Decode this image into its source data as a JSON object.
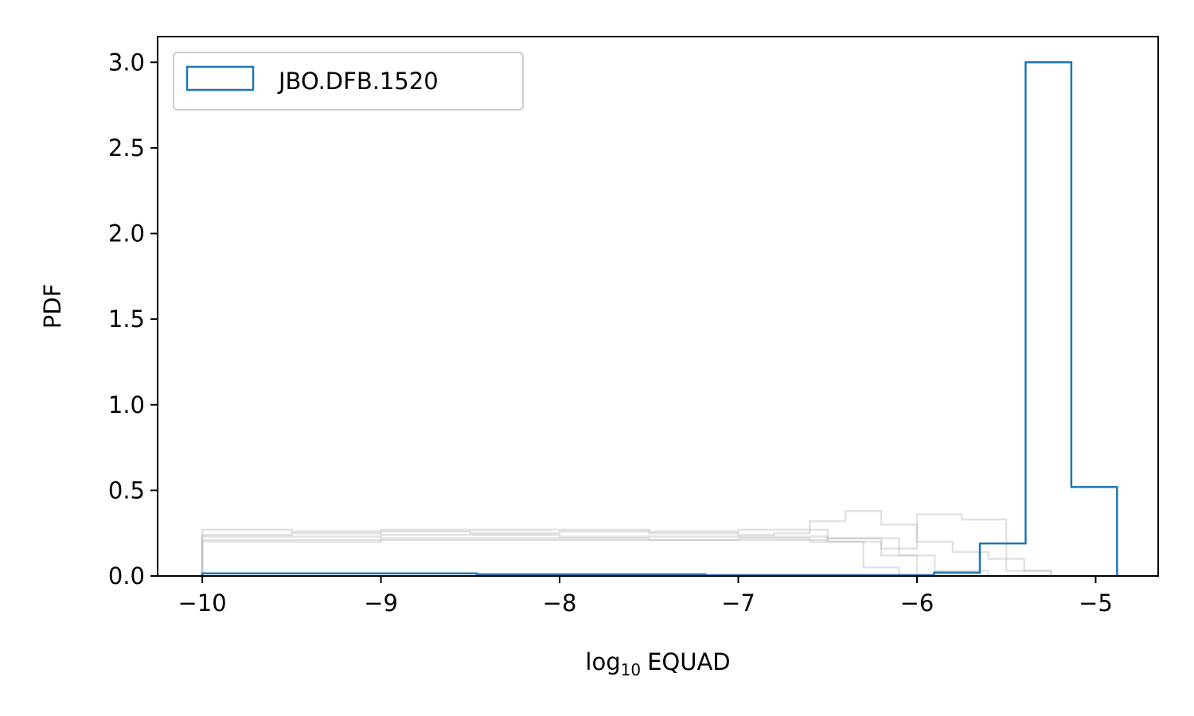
{
  "chart_data": {
    "type": "histogram-step",
    "title": "",
    "xlabel_base": "log",
    "xlabel_sub": "10",
    "xlabel_rest": "EQUAD",
    "ylabel": "PDF",
    "xlim": [
      -10.25,
      -4.65
    ],
    "ylim": [
      0,
      3.15
    ],
    "xticks": [
      -10,
      -9,
      -8,
      -7,
      -6,
      -5
    ],
    "xtick_labels": [
      "−10",
      "−9",
      "−8",
      "−7",
      "−6",
      "−5"
    ],
    "yticks": [
      0.0,
      0.5,
      1.0,
      1.5,
      2.0,
      2.5,
      3.0
    ],
    "ytick_labels": [
      "0.0",
      "0.5",
      "1.0",
      "1.5",
      "2.0",
      "2.5",
      "3.0"
    ],
    "grid": false,
    "legend": {
      "placement": "top-left",
      "entries": [
        {
          "label": "JBO.DFB.1520",
          "color": "#1f77b4"
        }
      ]
    },
    "series": [
      {
        "name": "JBO.DFB.1520",
        "color": "#1f77b4",
        "highlight": true,
        "edges": [
          -10.0,
          -9.744,
          -9.488,
          -9.232,
          -8.976,
          -8.72,
          -8.464,
          -8.208,
          -7.952,
          -7.696,
          -7.44,
          -7.184,
          -6.928,
          -6.672,
          -6.416,
          -6.16,
          -5.904,
          -5.648,
          -5.392,
          -5.136,
          -4.88
        ],
        "values": [
          0.015,
          0.015,
          0.015,
          0.015,
          0.015,
          0.015,
          0.01,
          0.01,
          0.01,
          0.01,
          0.01,
          0.005,
          0.005,
          0.005,
          0.005,
          0.005,
          0.02,
          0.19,
          3.0,
          0.52
        ]
      },
      {
        "name": "",
        "color": "#bfbfbf",
        "highlight": false,
        "edges": [
          -10.0,
          -9.5,
          -9.0,
          -8.5,
          -8.0,
          -7.5,
          -7.0,
          -6.8,
          -6.6,
          -6.4,
          -6.2,
          -6.0,
          -5.8,
          -5.6,
          -5.4,
          -5.25
        ],
        "values": [
          0.24,
          0.25,
          0.26,
          0.25,
          0.26,
          0.25,
          0.24,
          0.25,
          0.32,
          0.38,
          0.3,
          0.2,
          0.14,
          0.1,
          0.03
        ]
      },
      {
        "name": "",
        "color": "#bfbfbf",
        "highlight": false,
        "edges": [
          -10.0,
          -9.5,
          -9.0,
          -8.5,
          -8.0,
          -7.5,
          -7.0,
          -6.6,
          -6.2,
          -6.0,
          -5.75,
          -5.5,
          -5.25
        ],
        "values": [
          0.21,
          0.21,
          0.22,
          0.22,
          0.22,
          0.21,
          0.22,
          0.2,
          0.16,
          0.36,
          0.33,
          0.03
        ]
      },
      {
        "name": "",
        "color": "#bfbfbf",
        "highlight": false,
        "edges": [
          -10.0,
          -9.5,
          -9.0,
          -8.5,
          -8.0,
          -7.5,
          -7.0,
          -6.5,
          -6.1,
          -5.9,
          -5.6
        ],
        "values": [
          0.27,
          0.26,
          0.27,
          0.27,
          0.27,
          0.26,
          0.27,
          0.22,
          0.12,
          0.03
        ]
      },
      {
        "name": "",
        "color": "#bfbfbf",
        "highlight": false,
        "edges": [
          -10.0,
          -9.5,
          -9.0,
          -8.5,
          -8.0,
          -7.5,
          -7.0,
          -6.5,
          -6.2,
          -6.0
        ],
        "values": [
          0.2,
          0.2,
          0.21,
          0.21,
          0.21,
          0.21,
          0.21,
          0.22,
          0.12
        ]
      },
      {
        "name": "",
        "color": "#bfbfbf",
        "highlight": false,
        "edges": [
          -10.0,
          -9.0,
          -8.0,
          -7.0,
          -6.5,
          -6.3,
          -6.1
        ],
        "values": [
          0.23,
          0.24,
          0.23,
          0.23,
          0.2,
          0.05
        ]
      }
    ]
  }
}
